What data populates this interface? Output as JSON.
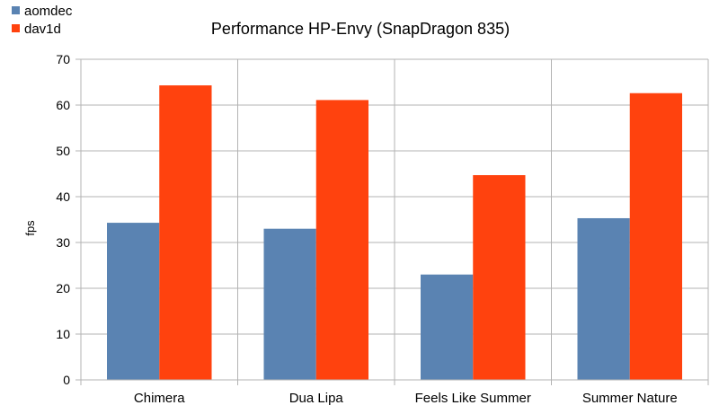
{
  "chart_data": {
    "type": "bar",
    "title": "Performance HP-Envy (SnapDragon 835)",
    "xlabel": "",
    "ylabel": "fps",
    "categories": [
      "Chimera",
      "Dua Lipa",
      "Feels Like Summer",
      "Summer Nature"
    ],
    "series": [
      {
        "name": "aomdec",
        "color": "#5a83b2",
        "values": [
          34.3,
          33.0,
          23.0,
          35.3
        ]
      },
      {
        "name": "dav1d",
        "color": "#ff420e",
        "values": [
          64.3,
          61.1,
          44.7,
          62.6
        ]
      }
    ],
    "ylim": [
      0,
      70
    ],
    "yticks": [
      0,
      10,
      20,
      30,
      40,
      50,
      60,
      70
    ],
    "grid": true,
    "legend_position": "top-left"
  }
}
